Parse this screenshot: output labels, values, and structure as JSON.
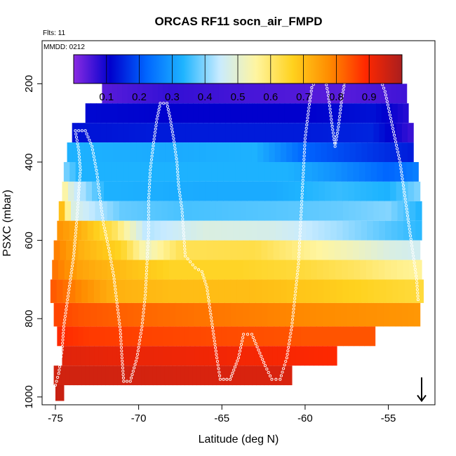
{
  "chart_data": {
    "type": "heatmap",
    "title": "ORCAS RF11 socn_air_FMPD",
    "subtitle_flights": "Flts: 11",
    "subtitle_date": "MMDD: 0212",
    "xlabel": "Latitude (deg N)",
    "ylabel": "PSXC (mbar)",
    "xlim": [
      -75.8,
      -52.2
    ],
    "ylim": [
      1020,
      90
    ],
    "y_reversed": true,
    "x_ticks": [
      -75,
      -70,
      -65,
      -60,
      -55
    ],
    "y_ticks": [
      200,
      400,
      600,
      800,
      1000
    ],
    "colorbar": {
      "range": [
        0,
        1
      ],
      "tick_values": [
        0.1,
        0.2,
        0.3,
        0.4,
        0.5,
        0.6,
        0.7,
        0.8,
        0.9
      ],
      "tick_labels": [
        "0.1",
        "0.2",
        "0.3",
        "0.4",
        "0.5",
        "0.6",
        "0.7",
        "0.8",
        "0.9"
      ],
      "colors": [
        "#8a2be2",
        "#0000cd",
        "#0066ff",
        "#1eb4ff",
        "#c8ebff",
        "#fff5a0",
        "#ffd21e",
        "#ff8c00",
        "#ff2800",
        "#aa1e1e"
      ]
    },
    "bands": [
      {
        "p_top": 180,
        "p_bot": 200,
        "lat_start": -71.7,
        "lat_end": -54.2,
        "segments": [
          [
            -71.7,
            0.03
          ],
          [
            -54.2,
            0.03
          ]
        ]
      },
      {
        "p_top": 200,
        "p_bot": 250,
        "lat_start": -72.2,
        "lat_end": -53.9,
        "segments": [
          [
            -72.2,
            0.04
          ],
          [
            -68,
            0.07
          ],
          [
            -62,
            0.05
          ],
          [
            -58,
            0.04
          ],
          [
            -53.9,
            0.06
          ]
        ]
      },
      {
        "p_top": 250,
        "p_bot": 300,
        "lat_start": -73.2,
        "lat_end": -53.8,
        "segments": [
          [
            -73.2,
            0.12
          ],
          [
            -67,
            0.11
          ],
          [
            -60,
            0.11
          ],
          [
            -56,
            0.13
          ],
          [
            -53.8,
            0.08
          ]
        ]
      },
      {
        "p_top": 300,
        "p_bot": 350,
        "lat_start": -74.0,
        "lat_end": -53.5,
        "segments": [
          [
            -74.0,
            0.13
          ],
          [
            -69,
            0.14
          ],
          [
            -64,
            0.14
          ],
          [
            -60,
            0.14
          ],
          [
            -56,
            0.15
          ],
          [
            -53.5,
            0.06
          ]
        ]
      },
      {
        "p_top": 350,
        "p_bot": 400,
        "lat_start": -74.3,
        "lat_end": -53.5,
        "segments": [
          [
            -74.3,
            0.33
          ],
          [
            -68,
            0.32
          ],
          [
            -63,
            0.33
          ],
          [
            -60,
            0.22
          ],
          [
            -56,
            0.17
          ],
          [
            -53.5,
            0.14
          ]
        ]
      },
      {
        "p_top": 400,
        "p_bot": 450,
        "lat_start": -74.5,
        "lat_end": -53.2,
        "segments": [
          [
            -74.5,
            0.4
          ],
          [
            -73.5,
            0.33
          ],
          [
            -68,
            0.33
          ],
          [
            -61,
            0.33
          ],
          [
            -58,
            0.28
          ],
          [
            -55,
            0.22
          ],
          [
            -53.2,
            0.26
          ]
        ]
      },
      {
        "p_top": 450,
        "p_bot": 500,
        "lat_start": -74.6,
        "lat_end": -53.1,
        "segments": [
          [
            -74.6,
            0.58
          ],
          [
            -74,
            0.47
          ],
          [
            -72,
            0.33
          ],
          [
            -66,
            0.32
          ],
          [
            -62,
            0.32
          ],
          [
            -58,
            0.35
          ],
          [
            -55,
            0.33
          ],
          [
            -53.1,
            0.4
          ]
        ]
      },
      {
        "p_top": 500,
        "p_bot": 550,
        "lat_start": -74.8,
        "lat_end": -53.0,
        "segments": [
          [
            -74.8,
            0.76
          ],
          [
            -74,
            0.48
          ],
          [
            -71,
            0.38
          ],
          [
            -67,
            0.36
          ],
          [
            -62,
            0.37
          ],
          [
            -58,
            0.38
          ],
          [
            -55,
            0.4
          ],
          [
            -53.0,
            0.33
          ]
        ]
      },
      {
        "p_top": 550,
        "p_bot": 600,
        "lat_start": -74.9,
        "lat_end": -53.0,
        "segments": [
          [
            -74.9,
            0.77
          ],
          [
            -73.5,
            0.72
          ],
          [
            -71.5,
            0.62
          ],
          [
            -69.5,
            0.43
          ],
          [
            -68,
            0.45
          ],
          [
            -66,
            0.48
          ],
          [
            -62,
            0.47
          ],
          [
            -58,
            0.42
          ],
          [
            -55,
            0.37
          ],
          [
            -53.0,
            0.34
          ]
        ]
      },
      {
        "p_top": 600,
        "p_bot": 650,
        "lat_start": -75.1,
        "lat_end": -53.1,
        "segments": [
          [
            -75.1,
            0.8
          ],
          [
            -73.5,
            0.72
          ],
          [
            -71,
            0.66
          ],
          [
            -69.5,
            0.52
          ],
          [
            -67.5,
            0.62
          ],
          [
            -63,
            0.63
          ],
          [
            -60,
            0.57
          ],
          [
            -57,
            0.52
          ],
          [
            -55,
            0.48
          ],
          [
            -53.1,
            0.46
          ]
        ]
      },
      {
        "p_top": 650,
        "p_bot": 700,
        "lat_start": -75.2,
        "lat_end": -53.0,
        "segments": [
          [
            -75.2,
            0.81
          ],
          [
            -73.5,
            0.74
          ],
          [
            -71,
            0.7
          ],
          [
            -68,
            0.66
          ],
          [
            -64,
            0.66
          ],
          [
            -60,
            0.64
          ],
          [
            -57,
            0.61
          ],
          [
            -55,
            0.58
          ],
          [
            -53.0,
            0.56
          ]
        ]
      },
      {
        "p_top": 700,
        "p_bot": 760,
        "lat_start": -75.3,
        "lat_end": -52.9,
        "segments": [
          [
            -75.3,
            0.84
          ],
          [
            -73.5,
            0.78
          ],
          [
            -71.5,
            0.72
          ],
          [
            -68,
            0.7
          ],
          [
            -63,
            0.7
          ],
          [
            -59,
            0.68
          ],
          [
            -56,
            0.66
          ],
          [
            -52.9,
            0.64
          ]
        ]
      },
      {
        "p_top": 760,
        "p_bot": 820,
        "lat_start": -75.1,
        "lat_end": -53.1,
        "segments": [
          [
            -75.1,
            0.86
          ],
          [
            -73.5,
            0.84
          ],
          [
            -70,
            0.82
          ],
          [
            -65,
            0.8
          ],
          [
            -60,
            0.78
          ],
          [
            -56,
            0.77
          ],
          [
            -53.1,
            0.76
          ]
        ]
      },
      {
        "p_top": 820,
        "p_bot": 870,
        "lat_start": -74.9,
        "lat_end": -55.8,
        "segments": [
          [
            -74.9,
            0.89
          ],
          [
            -73,
            0.87
          ],
          [
            -70,
            0.86
          ],
          [
            -65,
            0.85
          ],
          [
            -60,
            0.84
          ],
          [
            -55.8,
            0.84
          ]
        ]
      },
      {
        "p_top": 870,
        "p_bot": 920,
        "lat_start": -74.6,
        "lat_end": -58.1,
        "segments": [
          [
            -74.6,
            0.93
          ],
          [
            -72,
            0.92
          ],
          [
            -67,
            0.91
          ],
          [
            -62,
            0.9
          ],
          [
            -58.1,
            0.89
          ]
        ]
      },
      {
        "p_top": 920,
        "p_bot": 970,
        "lat_start": -75.1,
        "lat_end": -60.8,
        "segments": [
          [
            -75.1,
            0.95
          ],
          [
            -72,
            0.95
          ],
          [
            -66,
            0.94
          ],
          [
            -60.8,
            0.94
          ]
        ]
      },
      {
        "p_top": 970,
        "p_bot": 1010,
        "lat_start": -75.0,
        "lat_end": -74.5,
        "segments": [
          [
            -75.0,
            0.96
          ],
          [
            -74.5,
            0.96
          ]
        ]
      }
    ],
    "flight_track": [
      [
        -75.0,
        970
      ],
      [
        -74.8,
        940
      ],
      [
        -74.6,
        880
      ],
      [
        -74.5,
        820
      ],
      [
        -74.3,
        760
      ],
      [
        -74.1,
        700
      ],
      [
        -73.9,
        640
      ],
      [
        -73.8,
        590
      ],
      [
        -73.7,
        540
      ],
      [
        -73.6,
        480
      ],
      [
        -73.5,
        420
      ],
      [
        -73.6,
        370
      ],
      [
        -73.8,
        320
      ],
      [
        -73.2,
        320
      ],
      [
        -72.8,
        360
      ],
      [
        -72.5,
        430
      ],
      [
        -72.3,
        500
      ],
      [
        -72.1,
        560
      ],
      [
        -71.8,
        620
      ],
      [
        -71.5,
        690
      ],
      [
        -71.3,
        760
      ],
      [
        -71.1,
        830
      ],
      [
        -71.0,
        900
      ],
      [
        -70.9,
        960
      ],
      [
        -70.5,
        960
      ],
      [
        -70.1,
        900
      ],
      [
        -69.8,
        820
      ],
      [
        -69.6,
        740
      ],
      [
        -69.5,
        660
      ],
      [
        -69.4,
        580
      ],
      [
        -69.4,
        500
      ],
      [
        -69.3,
        420
      ],
      [
        -69.1,
        350
      ],
      [
        -68.9,
        290
      ],
      [
        -68.7,
        250
      ],
      [
        -68.3,
        250
      ],
      [
        -68.1,
        290
      ],
      [
        -67.9,
        340
      ],
      [
        -67.7,
        400
      ],
      [
        -67.6,
        460
      ],
      [
        -67.4,
        520
      ],
      [
        -67.3,
        580
      ],
      [
        -67.2,
        640
      ],
      [
        -66.6,
        670
      ],
      [
        -66.2,
        680
      ],
      [
        -65.9,
        720
      ],
      [
        -65.7,
        780
      ],
      [
        -65.5,
        840
      ],
      [
        -65.3,
        900
      ],
      [
        -65.1,
        955
      ],
      [
        -64.5,
        955
      ],
      [
        -64.0,
        900
      ],
      [
        -63.7,
        840
      ],
      [
        -63.2,
        840
      ],
      [
        -62.8,
        880
      ],
      [
        -62.4,
        920
      ],
      [
        -62.0,
        955
      ],
      [
        -61.5,
        955
      ],
      [
        -61.1,
        900
      ],
      [
        -60.8,
        820
      ],
      [
        -60.6,
        740
      ],
      [
        -60.4,
        660
      ],
      [
        -60.3,
        580
      ],
      [
        -60.2,
        500
      ],
      [
        -60.1,
        420
      ],
      [
        -60.0,
        340
      ],
      [
        -59.8,
        270
      ],
      [
        -59.6,
        210
      ],
      [
        -59.3,
        185
      ],
      [
        -58.8,
        185
      ],
      [
        -58.6,
        230
      ],
      [
        -58.4,
        300
      ],
      [
        -58.2,
        360
      ],
      [
        -58.0,
        310
      ],
      [
        -57.8,
        240
      ],
      [
        -57.6,
        190
      ],
      [
        -57.0,
        185
      ],
      [
        -55.5,
        185
      ],
      [
        -55.2,
        220
      ],
      [
        -54.9,
        280
      ],
      [
        -54.6,
        340
      ],
      [
        -54.3,
        400
      ],
      [
        -54.1,
        460
      ],
      [
        -53.9,
        520
      ],
      [
        -53.7,
        580
      ],
      [
        -53.5,
        640
      ],
      [
        -53.3,
        700
      ],
      [
        -53.2,
        760
      ]
    ],
    "arrow_marker": {
      "lat": -53.0,
      "p_top": 950,
      "p_bot": 1010
    }
  }
}
